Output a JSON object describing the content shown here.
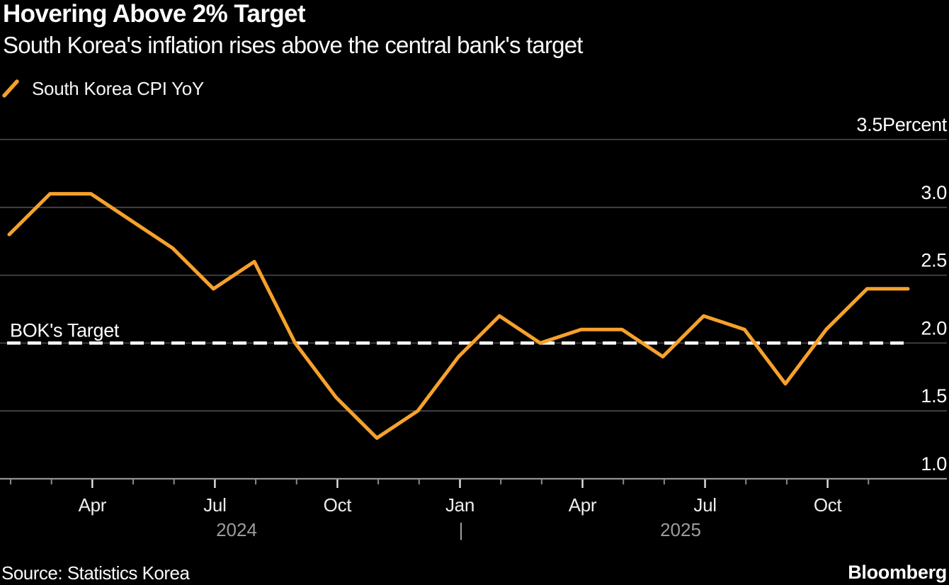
{
  "header": {
    "title": "Hovering Above 2% Target",
    "subtitle": "South Korea's inflation rises above the central bank's target"
  },
  "legend": {
    "series_label": "South Korea CPI YoY"
  },
  "chart_data": {
    "type": "line",
    "title": "Hovering Above 2% Target",
    "subtitle": "South Korea's inflation rises above the central bank's target",
    "background_color": "#000000",
    "grid": true,
    "legend_position": "top-left",
    "x": [
      "Jan 2024",
      "Feb 2024",
      "Mar 2024",
      "Apr 2024",
      "May 2024",
      "Jun 2024",
      "Jul 2024",
      "Aug 2024",
      "Sep 2024",
      "Oct 2024",
      "Nov 2024",
      "Dec 2024",
      "Jan 2025",
      "Feb 2025",
      "Mar 2025",
      "Apr 2025",
      "May 2025",
      "Jun 2025",
      "Jul 2025",
      "Aug 2025",
      "Sep 2025",
      "Oct 2025",
      "Nov 2025"
    ],
    "series": [
      {
        "name": "South Korea CPI YoY",
        "color": "#F6A12C",
        "values": [
          2.8,
          3.1,
          3.1,
          2.9,
          2.7,
          2.4,
          2.6,
          2.0,
          1.6,
          1.3,
          1.5,
          1.9,
          2.2,
          2.0,
          2.1,
          2.1,
          1.9,
          2.2,
          2.1,
          1.7,
          2.1,
          2.4,
          2.4
        ]
      }
    ],
    "ylim": [
      1.0,
      3.5
    ],
    "y_unit": "Percent",
    "y_ticks": [
      {
        "value": 3.5,
        "label": "3.5Percent"
      },
      {
        "value": 3.0,
        "label": "3.0"
      },
      {
        "value": 2.5,
        "label": "2.5"
      },
      {
        "value": 2.0,
        "label": "2.0"
      },
      {
        "value": 1.5,
        "label": "1.5"
      },
      {
        "value": 1.0,
        "label": "1.0"
      }
    ],
    "x_ticks": [
      {
        "month": "Feb",
        "major": false,
        "label": ""
      },
      {
        "month": "Mar",
        "major": false,
        "label": ""
      },
      {
        "month": "Apr",
        "major": true,
        "label": "Apr"
      },
      {
        "month": "May",
        "major": false,
        "label": ""
      },
      {
        "month": "Jun",
        "major": false,
        "label": ""
      },
      {
        "month": "Jul",
        "major": true,
        "label": "Jul"
      },
      {
        "month": "Aug",
        "major": false,
        "label": ""
      },
      {
        "month": "Sep",
        "major": false,
        "label": ""
      },
      {
        "month": "Oct",
        "major": true,
        "label": "Oct"
      },
      {
        "month": "Nov",
        "major": false,
        "label": ""
      },
      {
        "month": "Dec",
        "major": false,
        "label": ""
      },
      {
        "month": "Jan",
        "major": true,
        "label": "Jan"
      },
      {
        "month": "Feb",
        "major": false,
        "label": ""
      },
      {
        "month": "Mar",
        "major": false,
        "label": ""
      },
      {
        "month": "Apr",
        "major": true,
        "label": "Apr"
      },
      {
        "month": "May",
        "major": false,
        "label": ""
      },
      {
        "month": "Jun",
        "major": false,
        "label": ""
      },
      {
        "month": "Jul",
        "major": true,
        "label": "Jul"
      },
      {
        "month": "Aug",
        "major": false,
        "label": ""
      },
      {
        "month": "Sep",
        "major": false,
        "label": ""
      },
      {
        "month": "Oct",
        "major": true,
        "label": "Oct"
      },
      {
        "month": "Nov",
        "major": false,
        "label": ""
      }
    ],
    "year_labels": [
      "2024",
      "2025"
    ],
    "year_separator": "|",
    "target_line": {
      "label": "BOK's Target",
      "value": 2.0,
      "color": "#FFFFFF",
      "style": "dashed"
    }
  },
  "footer": {
    "source": "Source: Statistics Korea",
    "brand": "Bloomberg"
  }
}
